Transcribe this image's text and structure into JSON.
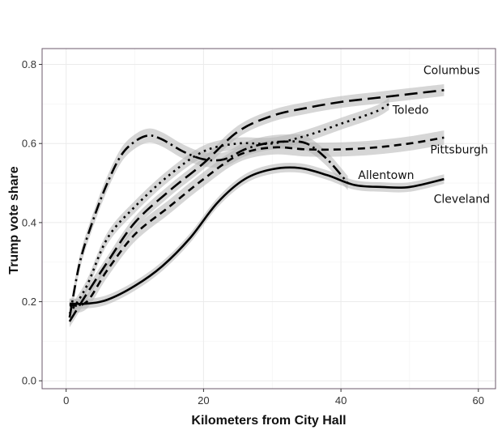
{
  "chart_data": {
    "type": "line",
    "xlabel": "Kilometers from City Hall",
    "ylabel": "Trump vote share",
    "xlim": [
      -3.5,
      62.5
    ],
    "ylim": [
      -0.02,
      0.84
    ],
    "x_ticks": [
      0,
      20,
      40,
      60
    ],
    "y_ticks": [
      0.0,
      0.2,
      0.4,
      0.6,
      0.8
    ],
    "x_tick_labels": [
      "0",
      "20",
      "40",
      "60"
    ],
    "y_tick_labels": [
      "0.0",
      "0.2",
      "0.4",
      "0.6",
      "0.8"
    ],
    "grid": true,
    "legend": "direct labels at line ends",
    "band_color": "#b4b4b4",
    "line_color": "#000000",
    "series": [
      {
        "name": "Columbus",
        "dash": "long-dash",
        "x": [
          0.5,
          3,
          6,
          10,
          15,
          20,
          25,
          30,
          35,
          40,
          45,
          50,
          55
        ],
        "y": [
          0.15,
          0.22,
          0.3,
          0.4,
          0.48,
          0.55,
          0.63,
          0.67,
          0.69,
          0.705,
          0.715,
          0.725,
          0.735
        ],
        "band_halfwidth": 0.015
      },
      {
        "name": "Toledo",
        "dash": "dotted",
        "x": [
          0.5,
          3,
          6,
          10,
          15,
          20,
          25,
          30,
          35,
          40,
          45,
          47
        ],
        "y": [
          0.17,
          0.24,
          0.36,
          0.44,
          0.52,
          0.58,
          0.6,
          0.6,
          0.62,
          0.65,
          0.68,
          0.7
        ],
        "band_halfwidth": 0.015
      },
      {
        "name": "Pittsburgh",
        "dash": "short-dash",
        "x": [
          0.5,
          3,
          6,
          10,
          15,
          20,
          25,
          30,
          35,
          40,
          45,
          50,
          55
        ],
        "y": [
          0.19,
          0.2,
          0.28,
          0.37,
          0.44,
          0.51,
          0.57,
          0.59,
          0.585,
          0.585,
          0.59,
          0.6,
          0.615
        ],
        "band_halfwidth": 0.018
      },
      {
        "name": "Allentown",
        "dash": "dash-dot",
        "x": [
          0.5,
          2,
          4,
          6,
          8,
          10,
          12,
          14,
          17,
          20,
          23,
          26,
          29,
          32,
          35,
          38,
          41
        ],
        "y": [
          0.16,
          0.3,
          0.41,
          0.5,
          0.57,
          0.605,
          0.62,
          0.61,
          0.58,
          0.56,
          0.56,
          0.585,
          0.6,
          0.605,
          0.6,
          0.56,
          0.5
        ],
        "band_halfwidth": 0.018
      },
      {
        "name": "Cleveland",
        "dash": "solid",
        "x": [
          0.5,
          3,
          6,
          10,
          14,
          18,
          22,
          26,
          30,
          34,
          38,
          42,
          46,
          50,
          55
        ],
        "y": [
          0.195,
          0.195,
          0.205,
          0.24,
          0.29,
          0.36,
          0.45,
          0.51,
          0.535,
          0.538,
          0.52,
          0.495,
          0.49,
          0.49,
          0.51
        ],
        "band_halfwidth": 0.012
      }
    ],
    "labels": [
      {
        "series": "Columbus",
        "text": "Columbus",
        "x": 52,
        "y": 0.775
      },
      {
        "series": "Toledo",
        "text": "Toledo",
        "x": 47.5,
        "y": 0.675
      },
      {
        "series": "Pittsburgh",
        "text": "Pittsburgh",
        "x": 53,
        "y": 0.575
      },
      {
        "series": "Allentown",
        "text": "Allentown",
        "x": 42.5,
        "y": 0.51
      },
      {
        "series": "Cleveland",
        "text": "Cleveland",
        "x": 53.5,
        "y": 0.45
      }
    ]
  }
}
